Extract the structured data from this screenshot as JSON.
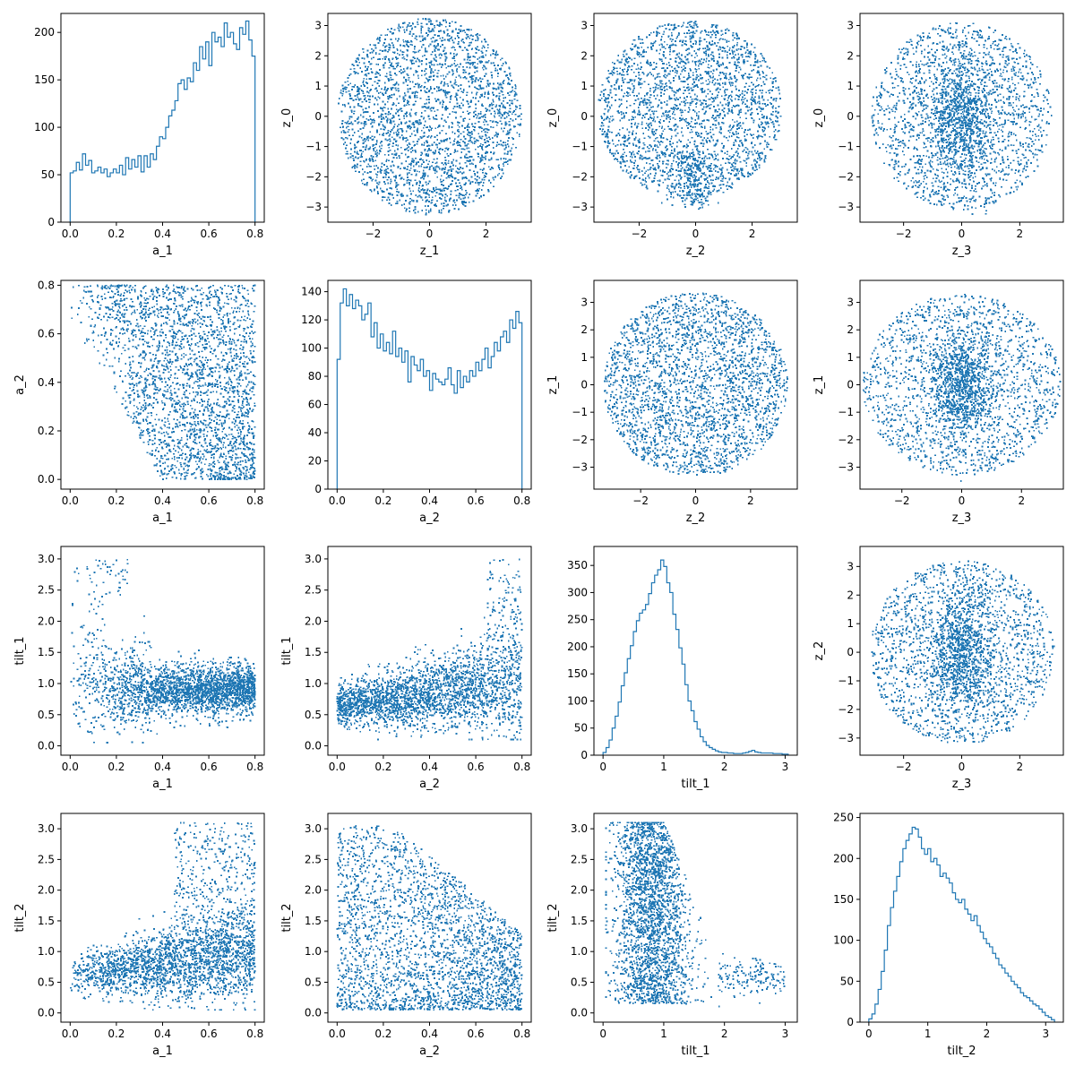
{
  "figure": {
    "color": "#1f77b4",
    "layout": "4x4 grid"
  },
  "chart_data": [
    {
      "type": "histogram",
      "row": 0,
      "col": 0,
      "xlabel": "a_1",
      "ylabel": "",
      "xlim": [
        -0.04,
        0.84
      ],
      "ylim": [
        0,
        220
      ],
      "xticks": [
        0.0,
        0.2,
        0.4,
        0.6,
        0.8
      ],
      "yticks": [
        0,
        50,
        100,
        150,
        200
      ],
      "bins": {
        "start": 0.0,
        "end": 0.8,
        "counts": [
          52,
          54,
          63,
          55,
          72,
          60,
          65,
          52,
          54,
          58,
          52,
          56,
          48,
          52,
          56,
          52,
          60,
          50,
          68,
          56,
          66,
          58,
          70,
          53,
          70,
          58,
          72,
          66,
          80,
          90,
          88,
          100,
          112,
          118,
          128,
          146,
          150,
          140,
          152,
          148,
          168,
          160,
          185,
          172,
          190,
          165,
          200,
          190,
          195,
          185,
          210,
          195,
          200,
          188,
          182,
          205,
          198,
          212,
          192,
          175
        ]
      }
    },
    {
      "type": "scatter",
      "row": 0,
      "col": 1,
      "xlabel": "z_1",
      "ylabel": "z_0",
      "xlim": [
        -3.6,
        3.6
      ],
      "ylim": [
        -3.5,
        3.4
      ],
      "xticks": [
        -2,
        0,
        2
      ],
      "yticks": [
        -3,
        -2,
        -1,
        0,
        1,
        2,
        3
      ],
      "shape": "disk",
      "radius": 3.25,
      "n": 2600
    },
    {
      "type": "scatter",
      "row": 0,
      "col": 2,
      "xlabel": "z_2",
      "ylabel": "z_0",
      "xlim": [
        -3.6,
        3.6
      ],
      "ylim": [
        -3.5,
        3.4
      ],
      "xticks": [
        -2,
        0,
        2
      ],
      "yticks": [
        -3,
        -2,
        -1,
        0,
        1,
        2,
        3
      ],
      "shape": "disk_tail",
      "radius": 3.1,
      "n": 2600
    },
    {
      "type": "scatter",
      "row": 0,
      "col": 3,
      "xlabel": "z_3",
      "ylabel": "z_0",
      "xlim": [
        -3.5,
        3.5
      ],
      "ylim": [
        -3.5,
        3.4
      ],
      "xticks": [
        -2,
        0,
        2
      ],
      "yticks": [
        -3,
        -2,
        -1,
        0,
        1,
        2,
        3
      ],
      "shape": "disk_cluster",
      "radius": 3.1,
      "n": 2600
    },
    {
      "type": "scatter",
      "row": 1,
      "col": 0,
      "xlabel": "a_1",
      "ylabel": "a_2",
      "xlim": [
        -0.04,
        0.84
      ],
      "ylim": [
        -0.04,
        0.82
      ],
      "xticks": [
        0.0,
        0.2,
        0.4,
        0.6,
        0.8
      ],
      "yticks": [
        0.0,
        0.2,
        0.4,
        0.6,
        0.8
      ],
      "shape": "a1a2",
      "n": 2600
    },
    {
      "type": "histogram",
      "row": 1,
      "col": 1,
      "xlabel": "a_2",
      "ylabel": "",
      "xlim": [
        -0.04,
        0.84
      ],
      "ylim": [
        0,
        148
      ],
      "xticks": [
        0.0,
        0.2,
        0.4,
        0.6,
        0.8
      ],
      "yticks": [
        0,
        20,
        40,
        60,
        80,
        100,
        120,
        140
      ],
      "bins": {
        "start": 0.0,
        "end": 0.8,
        "counts": [
          92,
          132,
          142,
          130,
          138,
          128,
          134,
          130,
          120,
          124,
          132,
          108,
          118,
          100,
          110,
          98,
          104,
          96,
          112,
          94,
          100,
          90,
          98,
          76,
          94,
          88,
          84,
          92,
          80,
          84,
          70,
          82,
          78,
          76,
          74,
          78,
          86,
          74,
          68,
          84,
          72,
          80,
          76,
          84,
          80,
          90,
          84,
          92,
          100,
          86,
          94,
          104,
          98,
          108,
          112,
          104,
          120,
          114,
          126,
          118
        ]
      }
    },
    {
      "type": "scatter",
      "row": 1,
      "col": 2,
      "xlabel": "z_2",
      "ylabel": "z_1",
      "xlim": [
        -3.7,
        3.7
      ],
      "ylim": [
        -3.8,
        3.8
      ],
      "xticks": [
        -2,
        0,
        2
      ],
      "yticks": [
        -3,
        -2,
        -1,
        0,
        1,
        2,
        3
      ],
      "shape": "disk",
      "radius": 3.35,
      "n": 2600
    },
    {
      "type": "scatter",
      "row": 1,
      "col": 3,
      "xlabel": "z_3",
      "ylabel": "z_1",
      "xlim": [
        -3.4,
        3.4
      ],
      "ylim": [
        -3.8,
        3.8
      ],
      "xticks": [
        -2,
        0,
        2
      ],
      "yticks": [
        -3,
        -2,
        -1,
        0,
        1,
        2,
        3
      ],
      "shape": "disk_cluster",
      "radius": 3.3,
      "n": 2600
    },
    {
      "type": "scatter",
      "row": 2,
      "col": 0,
      "xlabel": "a_1",
      "ylabel": "tilt_1",
      "xlim": [
        -0.04,
        0.84
      ],
      "ylim": [
        -0.15,
        3.2
      ],
      "xticks": [
        0.0,
        0.2,
        0.4,
        0.6,
        0.8
      ],
      "yticks": [
        0.0,
        0.5,
        1.0,
        1.5,
        2.0,
        2.5,
        3.0
      ],
      "shape": "a1tilt1",
      "n": 2600
    },
    {
      "type": "scatter",
      "row": 2,
      "col": 1,
      "xlabel": "a_2",
      "ylabel": "tilt_1",
      "xlim": [
        -0.04,
        0.84
      ],
      "ylim": [
        -0.15,
        3.2
      ],
      "xticks": [
        0.0,
        0.2,
        0.4,
        0.6,
        0.8
      ],
      "yticks": [
        0.0,
        0.5,
        1.0,
        1.5,
        2.0,
        2.5,
        3.0
      ],
      "shape": "a2tilt1",
      "n": 2600
    },
    {
      "type": "histogram",
      "row": 2,
      "col": 2,
      "xlabel": "tilt_1",
      "ylabel": "",
      "xlim": [
        -0.15,
        3.2
      ],
      "ylim": [
        0,
        385
      ],
      "xticks": [
        0,
        1,
        2,
        3
      ],
      "yticks": [
        0,
        50,
        100,
        150,
        200,
        250,
        300,
        350
      ],
      "bins": {
        "start": 0.0,
        "end": 3.05,
        "counts": [
          5,
          14,
          28,
          50,
          72,
          98,
          128,
          152,
          178,
          202,
          228,
          248,
          262,
          268,
          278,
          298,
          318,
          332,
          342,
          360,
          348,
          318,
          300,
          260,
          232,
          198,
          168,
          130,
          100,
          82,
          62,
          48,
          34,
          25,
          18,
          14,
          11,
          8,
          6,
          5,
          5,
          4,
          4,
          3,
          3,
          3,
          4,
          5,
          7,
          9,
          6,
          5,
          4,
          4,
          4,
          4,
          3,
          3,
          3,
          2,
          2
        ]
      }
    },
    {
      "type": "scatter",
      "row": 2,
      "col": 3,
      "xlabel": "z_3",
      "ylabel": "z_2",
      "xlim": [
        -3.5,
        3.5
      ],
      "ylim": [
        -3.6,
        3.7
      ],
      "xticks": [
        -2,
        0,
        2
      ],
      "yticks": [
        -3,
        -2,
        -1,
        0,
        1,
        2,
        3
      ],
      "shape": "disk_cluster",
      "radius": 3.2,
      "n": 2600
    },
    {
      "type": "scatter",
      "row": 3,
      "col": 0,
      "xlabel": "a_1",
      "ylabel": "tilt_2",
      "xlim": [
        -0.04,
        0.84
      ],
      "ylim": [
        -0.15,
        3.25
      ],
      "xticks": [
        0.0,
        0.2,
        0.4,
        0.6,
        0.8
      ],
      "yticks": [
        0.0,
        0.5,
        1.0,
        1.5,
        2.0,
        2.5,
        3.0
      ],
      "shape": "a1tilt2",
      "n": 2600
    },
    {
      "type": "scatter",
      "row": 3,
      "col": 1,
      "xlabel": "a_2",
      "ylabel": "tilt_2",
      "xlim": [
        -0.04,
        0.84
      ],
      "ylim": [
        -0.15,
        3.25
      ],
      "xticks": [
        0.0,
        0.2,
        0.4,
        0.6,
        0.8
      ],
      "yticks": [
        0.0,
        0.5,
        1.0,
        1.5,
        2.0,
        2.5,
        3.0
      ],
      "shape": "a2tilt2",
      "n": 2600
    },
    {
      "type": "scatter",
      "row": 3,
      "col": 2,
      "xlabel": "tilt_1",
      "ylabel": "tilt_2",
      "xlim": [
        -0.15,
        3.2
      ],
      "ylim": [
        -0.15,
        3.25
      ],
      "xticks": [
        0,
        1,
        2,
        3
      ],
      "yticks": [
        0.0,
        0.5,
        1.0,
        1.5,
        2.0,
        2.5,
        3.0
      ],
      "shape": "tilt1tilt2",
      "n": 2600
    },
    {
      "type": "histogram",
      "row": 3,
      "col": 3,
      "xlabel": "tilt_2",
      "ylabel": "",
      "xlim": [
        -0.15,
        3.3
      ],
      "ylim": [
        0,
        255
      ],
      "xticks": [
        0,
        1,
        2,
        3
      ],
      "yticks": [
        0,
        50,
        100,
        150,
        200,
        250
      ],
      "bins": {
        "start": 0.0,
        "end": 3.15,
        "counts": [
          4,
          10,
          22,
          40,
          62,
          88,
          118,
          140,
          160,
          178,
          196,
          212,
          222,
          230,
          238,
          236,
          226,
          212,
          205,
          212,
          196,
          200,
          192,
          178,
          182,
          176,
          170,
          158,
          150,
          146,
          150,
          138,
          132,
          124,
          130,
          118,
          110,
          102,
          96,
          92,
          84,
          78,
          70,
          66,
          60,
          56,
          50,
          46,
          42,
          36,
          32,
          30,
          26,
          22,
          20,
          16,
          12,
          8,
          6,
          3
        ]
      }
    }
  ]
}
